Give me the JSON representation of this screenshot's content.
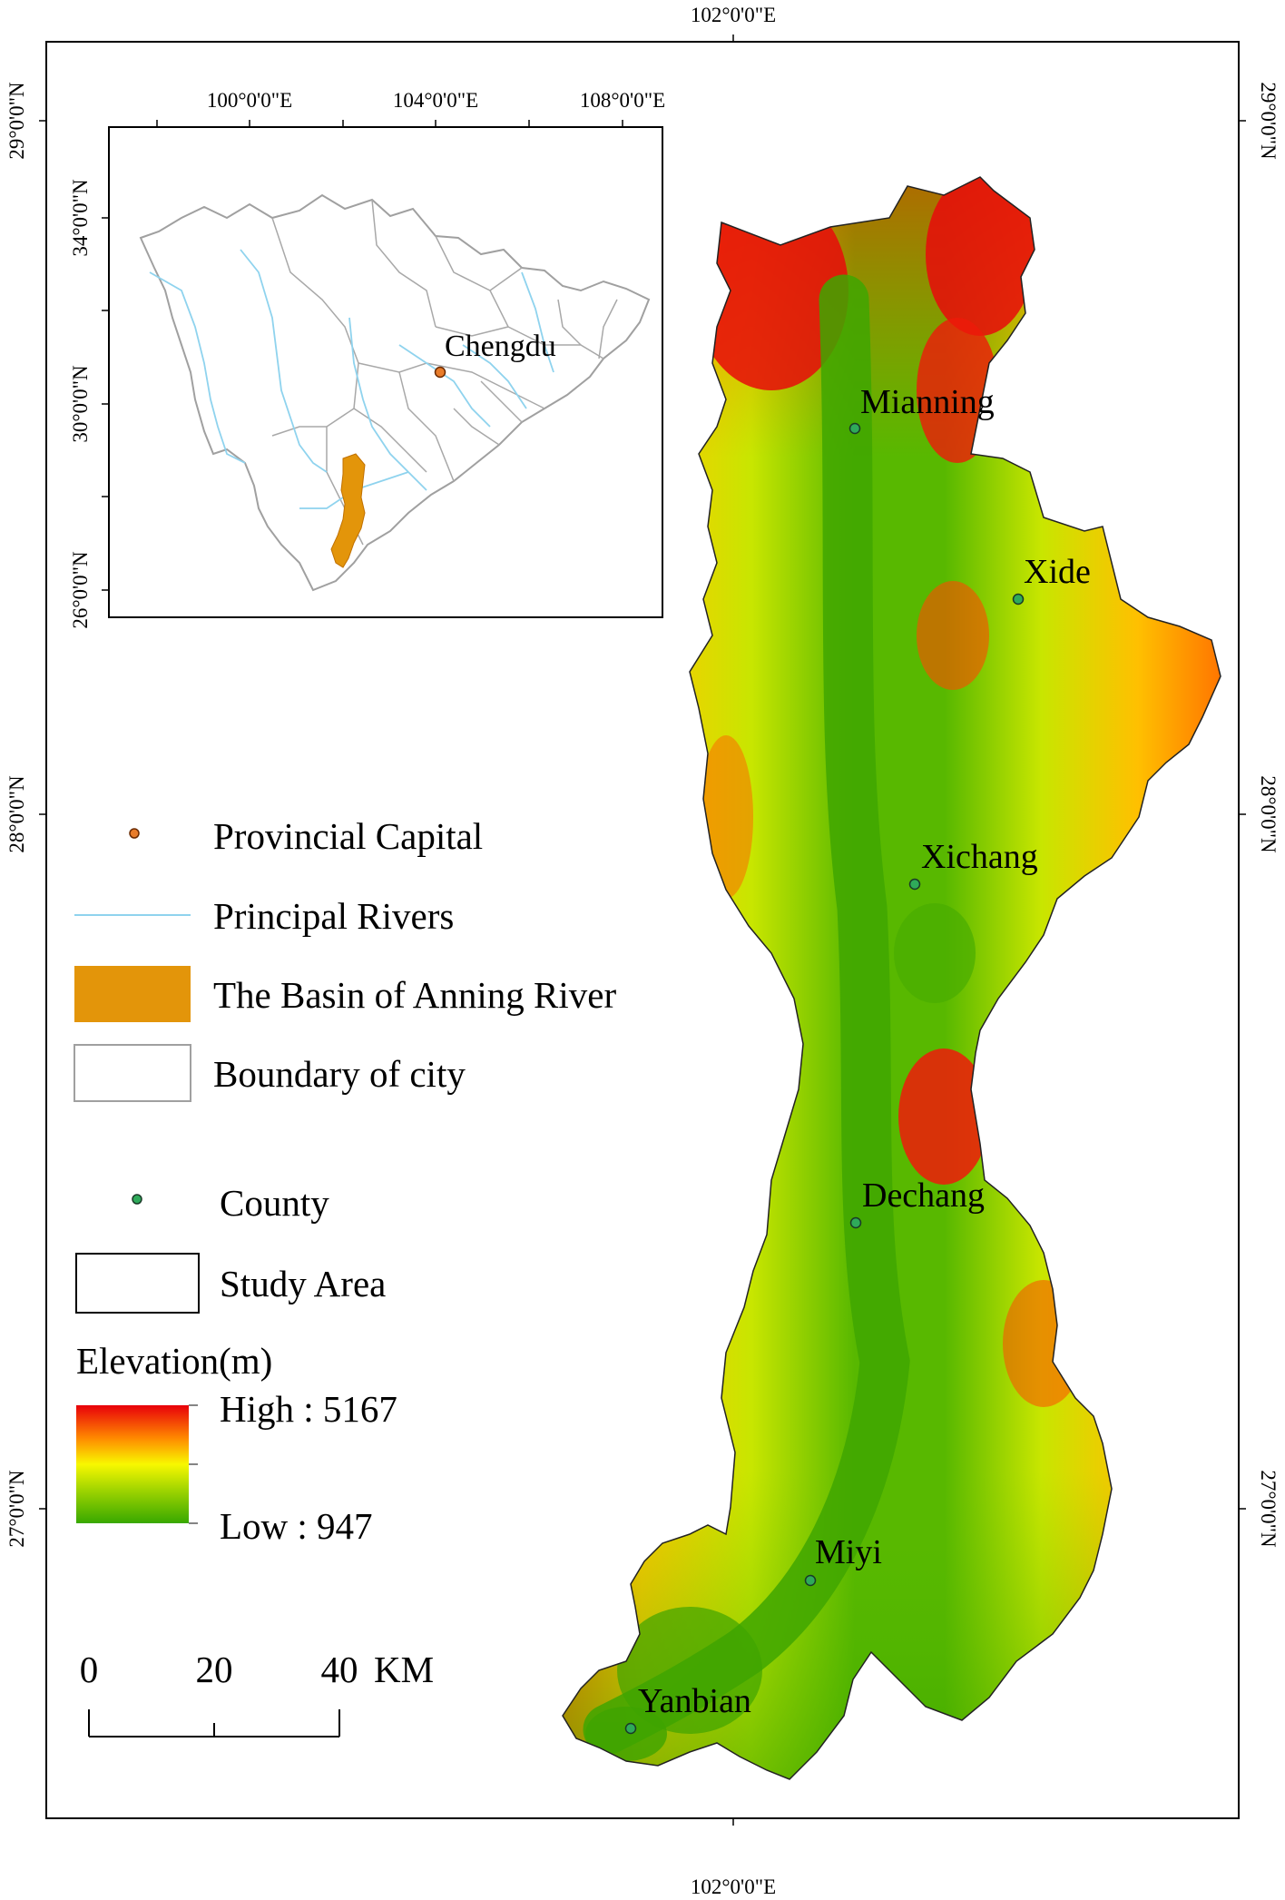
{
  "graticule": {
    "top_lon": "102°0'0\"E",
    "bottom_lon": "102°0'0\"E",
    "left_lats": [
      "29°0'0\"N",
      "28°0'0\"N",
      "27°0'0\"N"
    ],
    "right_lats": [
      "29°0'0\"N",
      "28°0'0\"N",
      "27°0'0\"N"
    ]
  },
  "inset": {
    "lon_labels": [
      "100°0'0\"E",
      "104°0'0\"E",
      "108°0'0\"E"
    ],
    "lat_labels": [
      "34°0'0\"N",
      "30°0'0\"N",
      "26°0'0\"N"
    ],
    "capital_label": "Chengdu"
  },
  "counties": [
    "Mianning",
    "Xide",
    "Xichang",
    "Dechang",
    "Miyi",
    "Yanbian"
  ],
  "legend": {
    "provincial_capital": "Provincial Capital",
    "principal_rivers": "Principal Rivers",
    "basin": "The Basin of Anning River",
    "boundary_city": "Boundary of city",
    "county": "County",
    "study_area": "Study Area",
    "elevation_title": "Elevation(m)",
    "elevation_high": "High : 5167",
    "elevation_low": "Low : 947"
  },
  "scale_bar": {
    "ticks": [
      "0",
      "20",
      "40"
    ],
    "unit": "KM"
  },
  "colors": {
    "capital_dot": "#e87c2a",
    "county_dot": "#2faa5a",
    "river": "#8fd3ee",
    "basin_fill": "#e3950a",
    "boundary": "#a0a0a0",
    "elev_high": "#e8000a",
    "elev_mid": "#f8f800",
    "elev_low": "#38a800"
  }
}
